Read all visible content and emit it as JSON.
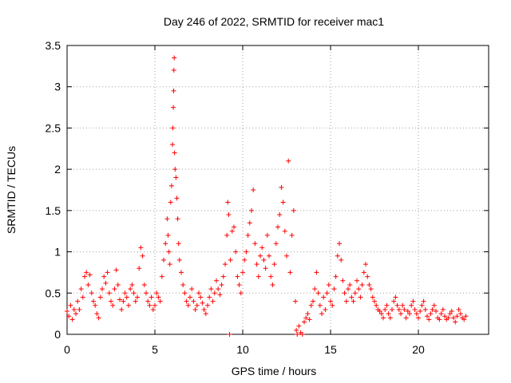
{
  "chart_data": {
    "type": "scatter",
    "title": "Day 246 of 2022, SRMTID for receiver mac1",
    "xlabel": "GPS time / hours",
    "ylabel": "SRMTID / TECUs",
    "xlim": [
      0,
      24
    ],
    "ylim": [
      0,
      3.5
    ],
    "grid": true,
    "marker": "+",
    "color": "#ff0000",
    "xticks": [
      {
        "value": 0,
        "label": "0"
      },
      {
        "value": 5,
        "label": "5"
      },
      {
        "value": 10,
        "label": "10"
      },
      {
        "value": 15,
        "label": "15"
      },
      {
        "value": 20,
        "label": "20"
      }
    ],
    "yticks": [
      {
        "value": 0,
        "label": "0"
      },
      {
        "value": 0.5,
        "label": "0.5"
      },
      {
        "value": 1,
        "label": "1"
      },
      {
        "value": 1.5,
        "label": "1.5"
      },
      {
        "value": 2,
        "label": "2"
      },
      {
        "value": 2.5,
        "label": "2.5"
      },
      {
        "value": 3,
        "label": "3"
      },
      {
        "value": 3.5,
        "label": "3.5"
      }
    ],
    "series": [
      {
        "name": "SRMTID",
        "points": [
          [
            0.0,
            0.28
          ],
          [
            0.1,
            0.22
          ],
          [
            0.2,
            0.35
          ],
          [
            0.3,
            0.18
          ],
          [
            0.4,
            0.3
          ],
          [
            0.5,
            0.25
          ],
          [
            0.6,
            0.4
          ],
          [
            0.7,
            0.3
          ],
          [
            0.8,
            0.55
          ],
          [
            0.9,
            0.45
          ],
          [
            1.0,
            0.7
          ],
          [
            1.1,
            0.75
          ],
          [
            1.2,
            0.6
          ],
          [
            1.3,
            0.72
          ],
          [
            1.4,
            0.5
          ],
          [
            1.5,
            0.4
          ],
          [
            1.6,
            0.35
          ],
          [
            1.7,
            0.25
          ],
          [
            1.8,
            0.2
          ],
          [
            1.9,
            0.45
          ],
          [
            2.0,
            0.55
          ],
          [
            2.1,
            0.7
          ],
          [
            2.2,
            0.62
          ],
          [
            2.3,
            0.75
          ],
          [
            2.4,
            0.5
          ],
          [
            2.5,
            0.4
          ],
          [
            2.6,
            0.35
          ],
          [
            2.7,
            0.55
          ],
          [
            2.8,
            0.78
          ],
          [
            2.9,
            0.6
          ],
          [
            3.0,
            0.42
          ],
          [
            3.1,
            0.3
          ],
          [
            3.2,
            0.4
          ],
          [
            3.3,
            0.5
          ],
          [
            3.4,
            0.45
          ],
          [
            3.5,
            0.35
          ],
          [
            3.6,
            0.55
          ],
          [
            3.7,
            0.6
          ],
          [
            3.8,
            0.5
          ],
          [
            3.9,
            0.4
          ],
          [
            4.0,
            0.45
          ],
          [
            4.1,
            0.8
          ],
          [
            4.2,
            1.05
          ],
          [
            4.3,
            0.95
          ],
          [
            4.4,
            0.6
          ],
          [
            4.5,
            0.5
          ],
          [
            4.6,
            0.4
          ],
          [
            4.7,
            0.35
          ],
          [
            4.8,
            0.45
          ],
          [
            4.9,
            0.3
          ],
          [
            5.0,
            0.35
          ],
          [
            5.1,
            0.5
          ],
          [
            5.2,
            0.45
          ],
          [
            5.3,
            0.4
          ],
          [
            5.4,
            0.7
          ],
          [
            5.5,
            0.9
          ],
          [
            5.6,
            1.1
          ],
          [
            5.7,
            1.4
          ],
          [
            5.75,
            1.2
          ],
          [
            5.8,
            1.0
          ],
          [
            5.85,
            0.85
          ],
          [
            5.9,
            1.6
          ],
          [
            5.95,
            1.8
          ],
          [
            6.0,
            2.3
          ],
          [
            6.02,
            2.5
          ],
          [
            6.05,
            2.75
          ],
          [
            6.07,
            2.95
          ],
          [
            6.08,
            3.2
          ],
          [
            6.1,
            3.35
          ],
          [
            6.12,
            2.2
          ],
          [
            6.15,
            2.0
          ],
          [
            6.2,
            1.9
          ],
          [
            6.25,
            1.65
          ],
          [
            6.3,
            1.4
          ],
          [
            6.35,
            1.1
          ],
          [
            6.4,
            0.9
          ],
          [
            6.5,
            0.75
          ],
          [
            6.6,
            0.6
          ],
          [
            6.7,
            0.5
          ],
          [
            6.8,
            0.4
          ],
          [
            6.9,
            0.35
          ],
          [
            7.0,
            0.45
          ],
          [
            7.1,
            0.55
          ],
          [
            7.2,
            0.4
          ],
          [
            7.3,
            0.3
          ],
          [
            7.4,
            0.35
          ],
          [
            7.5,
            0.5
          ],
          [
            7.6,
            0.45
          ],
          [
            7.7,
            0.38
          ],
          [
            7.8,
            0.3
          ],
          [
            7.9,
            0.25
          ],
          [
            8.0,
            0.35
          ],
          [
            8.1,
            0.45
          ],
          [
            8.2,
            0.55
          ],
          [
            8.3,
            0.4
          ],
          [
            8.4,
            0.5
          ],
          [
            8.5,
            0.65
          ],
          [
            8.6,
            0.55
          ],
          [
            8.7,
            0.48
          ],
          [
            8.8,
            0.6
          ],
          [
            8.9,
            0.7
          ],
          [
            9.0,
            0.85
          ],
          [
            9.1,
            1.2
          ],
          [
            9.15,
            1.6
          ],
          [
            9.2,
            1.45
          ],
          [
            9.25,
            0.0
          ],
          [
            9.3,
            0.9
          ],
          [
            9.4,
            1.25
          ],
          [
            9.5,
            1.3
          ],
          [
            9.6,
            1.0
          ],
          [
            9.7,
            0.7
          ],
          [
            9.8,
            0.6
          ],
          [
            9.9,
            0.5
          ],
          [
            10.0,
            0.75
          ],
          [
            10.1,
            0.9
          ],
          [
            10.2,
            1.0
          ],
          [
            10.3,
            1.2
          ],
          [
            10.4,
            1.35
          ],
          [
            10.5,
            1.5
          ],
          [
            10.6,
            1.75
          ],
          [
            10.7,
            1.1
          ],
          [
            10.8,
            0.85
          ],
          [
            10.9,
            0.7
          ],
          [
            11.0,
            0.95
          ],
          [
            11.1,
            1.05
          ],
          [
            11.2,
            0.9
          ],
          [
            11.3,
            0.8
          ],
          [
            11.4,
            1.2
          ],
          [
            11.5,
            0.95
          ],
          [
            11.6,
            0.7
          ],
          [
            11.7,
            0.6
          ],
          [
            11.8,
            0.85
          ],
          [
            11.9,
            1.1
          ],
          [
            12.0,
            1.3
          ],
          [
            12.1,
            1.45
          ],
          [
            12.2,
            1.78
          ],
          [
            12.3,
            1.6
          ],
          [
            12.4,
            1.25
          ],
          [
            12.5,
            0.95
          ],
          [
            12.6,
            2.1
          ],
          [
            12.7,
            0.75
          ],
          [
            12.8,
            1.2
          ],
          [
            12.9,
            1.5
          ],
          [
            13.0,
            0.4
          ],
          [
            13.05,
            0.05
          ],
          [
            13.1,
            0.0
          ],
          [
            13.2,
            0.1
          ],
          [
            13.3,
            0.02
          ],
          [
            13.4,
            0.0
          ],
          [
            13.5,
            0.15
          ],
          [
            13.6,
            0.2
          ],
          [
            13.7,
            0.25
          ],
          [
            13.8,
            0.18
          ],
          [
            13.9,
            0.35
          ],
          [
            14.0,
            0.4
          ],
          [
            14.1,
            0.55
          ],
          [
            14.2,
            0.75
          ],
          [
            14.3,
            0.5
          ],
          [
            14.4,
            0.35
          ],
          [
            14.5,
            0.25
          ],
          [
            14.6,
            0.45
          ],
          [
            14.7,
            0.3
          ],
          [
            14.8,
            0.5
          ],
          [
            14.9,
            0.6
          ],
          [
            15.0,
            0.4
          ],
          [
            15.1,
            0.35
          ],
          [
            15.2,
            0.55
          ],
          [
            15.3,
            0.7
          ],
          [
            15.4,
            0.95
          ],
          [
            15.5,
            1.1
          ],
          [
            15.6,
            0.9
          ],
          [
            15.7,
            0.65
          ],
          [
            15.8,
            0.5
          ],
          [
            15.9,
            0.4
          ],
          [
            16.0,
            0.55
          ],
          [
            16.1,
            0.6
          ],
          [
            16.2,
            0.45
          ],
          [
            16.3,
            0.4
          ],
          [
            16.4,
            0.5
          ],
          [
            16.5,
            0.65
          ],
          [
            16.6,
            0.55
          ],
          [
            16.7,
            0.45
          ],
          [
            16.8,
            0.6
          ],
          [
            16.9,
            0.75
          ],
          [
            17.0,
            0.85
          ],
          [
            17.1,
            0.7
          ],
          [
            17.2,
            0.6
          ],
          [
            17.3,
            0.55
          ],
          [
            17.4,
            0.45
          ],
          [
            17.5,
            0.4
          ],
          [
            17.6,
            0.35
          ],
          [
            17.7,
            0.3
          ],
          [
            17.8,
            0.28
          ],
          [
            17.9,
            0.25
          ],
          [
            18.0,
            0.2
          ],
          [
            18.1,
            0.3
          ],
          [
            18.2,
            0.35
          ],
          [
            18.3,
            0.25
          ],
          [
            18.4,
            0.2
          ],
          [
            18.5,
            0.3
          ],
          [
            18.6,
            0.4
          ],
          [
            18.7,
            0.45
          ],
          [
            18.8,
            0.35
          ],
          [
            18.9,
            0.3
          ],
          [
            19.0,
            0.25
          ],
          [
            19.1,
            0.35
          ],
          [
            19.2,
            0.3
          ],
          [
            19.3,
            0.2
          ],
          [
            19.4,
            0.28
          ],
          [
            19.5,
            0.25
          ],
          [
            19.6,
            0.35
          ],
          [
            19.7,
            0.4
          ],
          [
            19.8,
            0.3
          ],
          [
            19.9,
            0.25
          ],
          [
            20.0,
            0.2
          ],
          [
            20.1,
            0.28
          ],
          [
            20.2,
            0.35
          ],
          [
            20.3,
            0.4
          ],
          [
            20.4,
            0.3
          ],
          [
            20.5,
            0.22
          ],
          [
            20.6,
            0.18
          ],
          [
            20.7,
            0.25
          ],
          [
            20.8,
            0.3
          ],
          [
            20.9,
            0.35
          ],
          [
            21.0,
            0.28
          ],
          [
            21.1,
            0.2
          ],
          [
            21.2,
            0.18
          ],
          [
            21.3,
            0.25
          ],
          [
            21.4,
            0.3
          ],
          [
            21.5,
            0.22
          ],
          [
            21.6,
            0.18
          ],
          [
            21.7,
            0.2
          ],
          [
            21.8,
            0.25
          ],
          [
            21.9,
            0.28
          ],
          [
            22.0,
            0.2
          ],
          [
            22.1,
            0.15
          ],
          [
            22.2,
            0.22
          ],
          [
            22.3,
            0.3
          ],
          [
            22.4,
            0.25
          ],
          [
            22.5,
            0.2
          ],
          [
            22.6,
            0.18
          ],
          [
            22.7,
            0.22
          ]
        ]
      }
    ]
  }
}
